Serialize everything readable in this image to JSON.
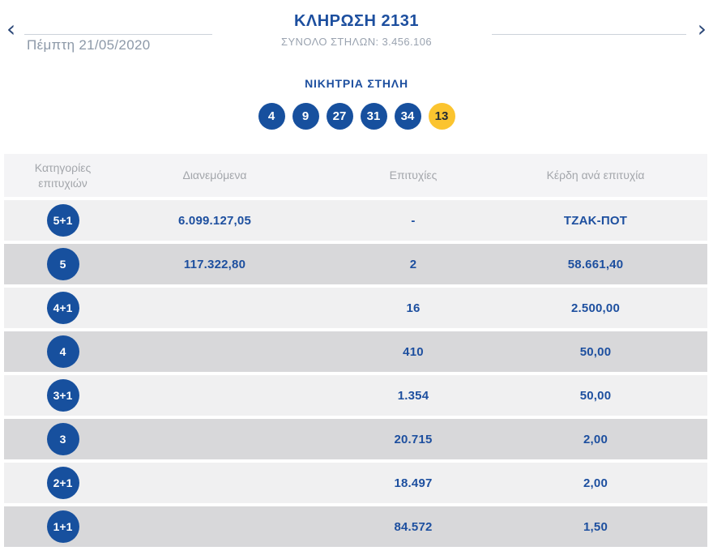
{
  "colors": {
    "brand_blue": "#17509e",
    "text_blue": "#1d4f9f",
    "bonus_yellow": "#fbc42f",
    "row_light": "#f0f0f1",
    "row_dark": "#d8d8da"
  },
  "header": {
    "prev_arrow": "‹",
    "next_arrow": "›",
    "date": "Πέμπτη 21/05/2020",
    "title": "ΚΛΗΡΩΣΗ 2131",
    "subtitle": "ΣΥΝΟΛΟ ΣΤΗΛΩΝ: 3.456.106"
  },
  "winning_column": {
    "heading": "ΝΙΚΗΤΡΙΑ ΣΤΗΛΗ",
    "numbers": [
      "4",
      "9",
      "27",
      "31",
      "34"
    ],
    "bonus": "13"
  },
  "table": {
    "headers": [
      "Κατηγορίες επιτυχιών",
      "Διανεμόμενα",
      "Επιτυχίες",
      "Κέρδη ανά επιτυχία"
    ],
    "rows": [
      {
        "category": "5+1",
        "distributed": "6.099.127,05",
        "winners": "-",
        "prize": "ΤΖΑΚ-ΠΟΤ"
      },
      {
        "category": "5",
        "distributed": "117.322,80",
        "winners": "2",
        "prize": "58.661,40"
      },
      {
        "category": "4+1",
        "distributed": "",
        "winners": "16",
        "prize": "2.500,00"
      },
      {
        "category": "4",
        "distributed": "",
        "winners": "410",
        "prize": "50,00"
      },
      {
        "category": "3+1",
        "distributed": "",
        "winners": "1.354",
        "prize": "50,00"
      },
      {
        "category": "3",
        "distributed": "",
        "winners": "20.715",
        "prize": "2,00"
      },
      {
        "category": "2+1",
        "distributed": "",
        "winners": "18.497",
        "prize": "2,00"
      },
      {
        "category": "1+1",
        "distributed": "",
        "winners": "84.572",
        "prize": "1,50"
      }
    ]
  }
}
